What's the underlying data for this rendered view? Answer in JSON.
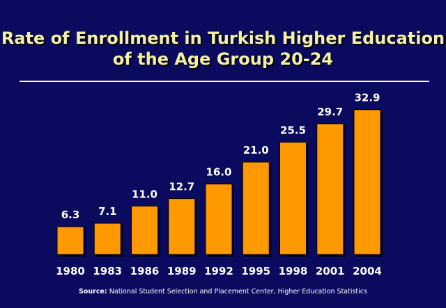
{
  "chart_data": {
    "type": "bar",
    "title_line1": "Rate of Enrollment in Turkish Higher Education",
    "title_line2": "of the Age Group 20-24",
    "categories": [
      "1980",
      "1983",
      "1986",
      "1989",
      "1992",
      "1995",
      "1998",
      "2001",
      "2004"
    ],
    "values": [
      6.3,
      7.1,
      11.0,
      12.7,
      16.0,
      21.0,
      25.5,
      29.7,
      32.9
    ],
    "value_labels": [
      "6.3",
      "7.1",
      "11.0",
      "12.7",
      "16.0",
      "21.0",
      "25.5",
      "29.7",
      "32.9"
    ],
    "ylim": [
      0,
      40
    ],
    "bar_color": "#ff9900",
    "grid": false,
    "legend": "none"
  },
  "source": {
    "label": "Source:",
    "text": "National Student Selection and Placement Center, Higher Education Statistics"
  },
  "colors": {
    "background": "#0a0a5e",
    "title": "#f4efa6",
    "text": "#ffffff"
  }
}
